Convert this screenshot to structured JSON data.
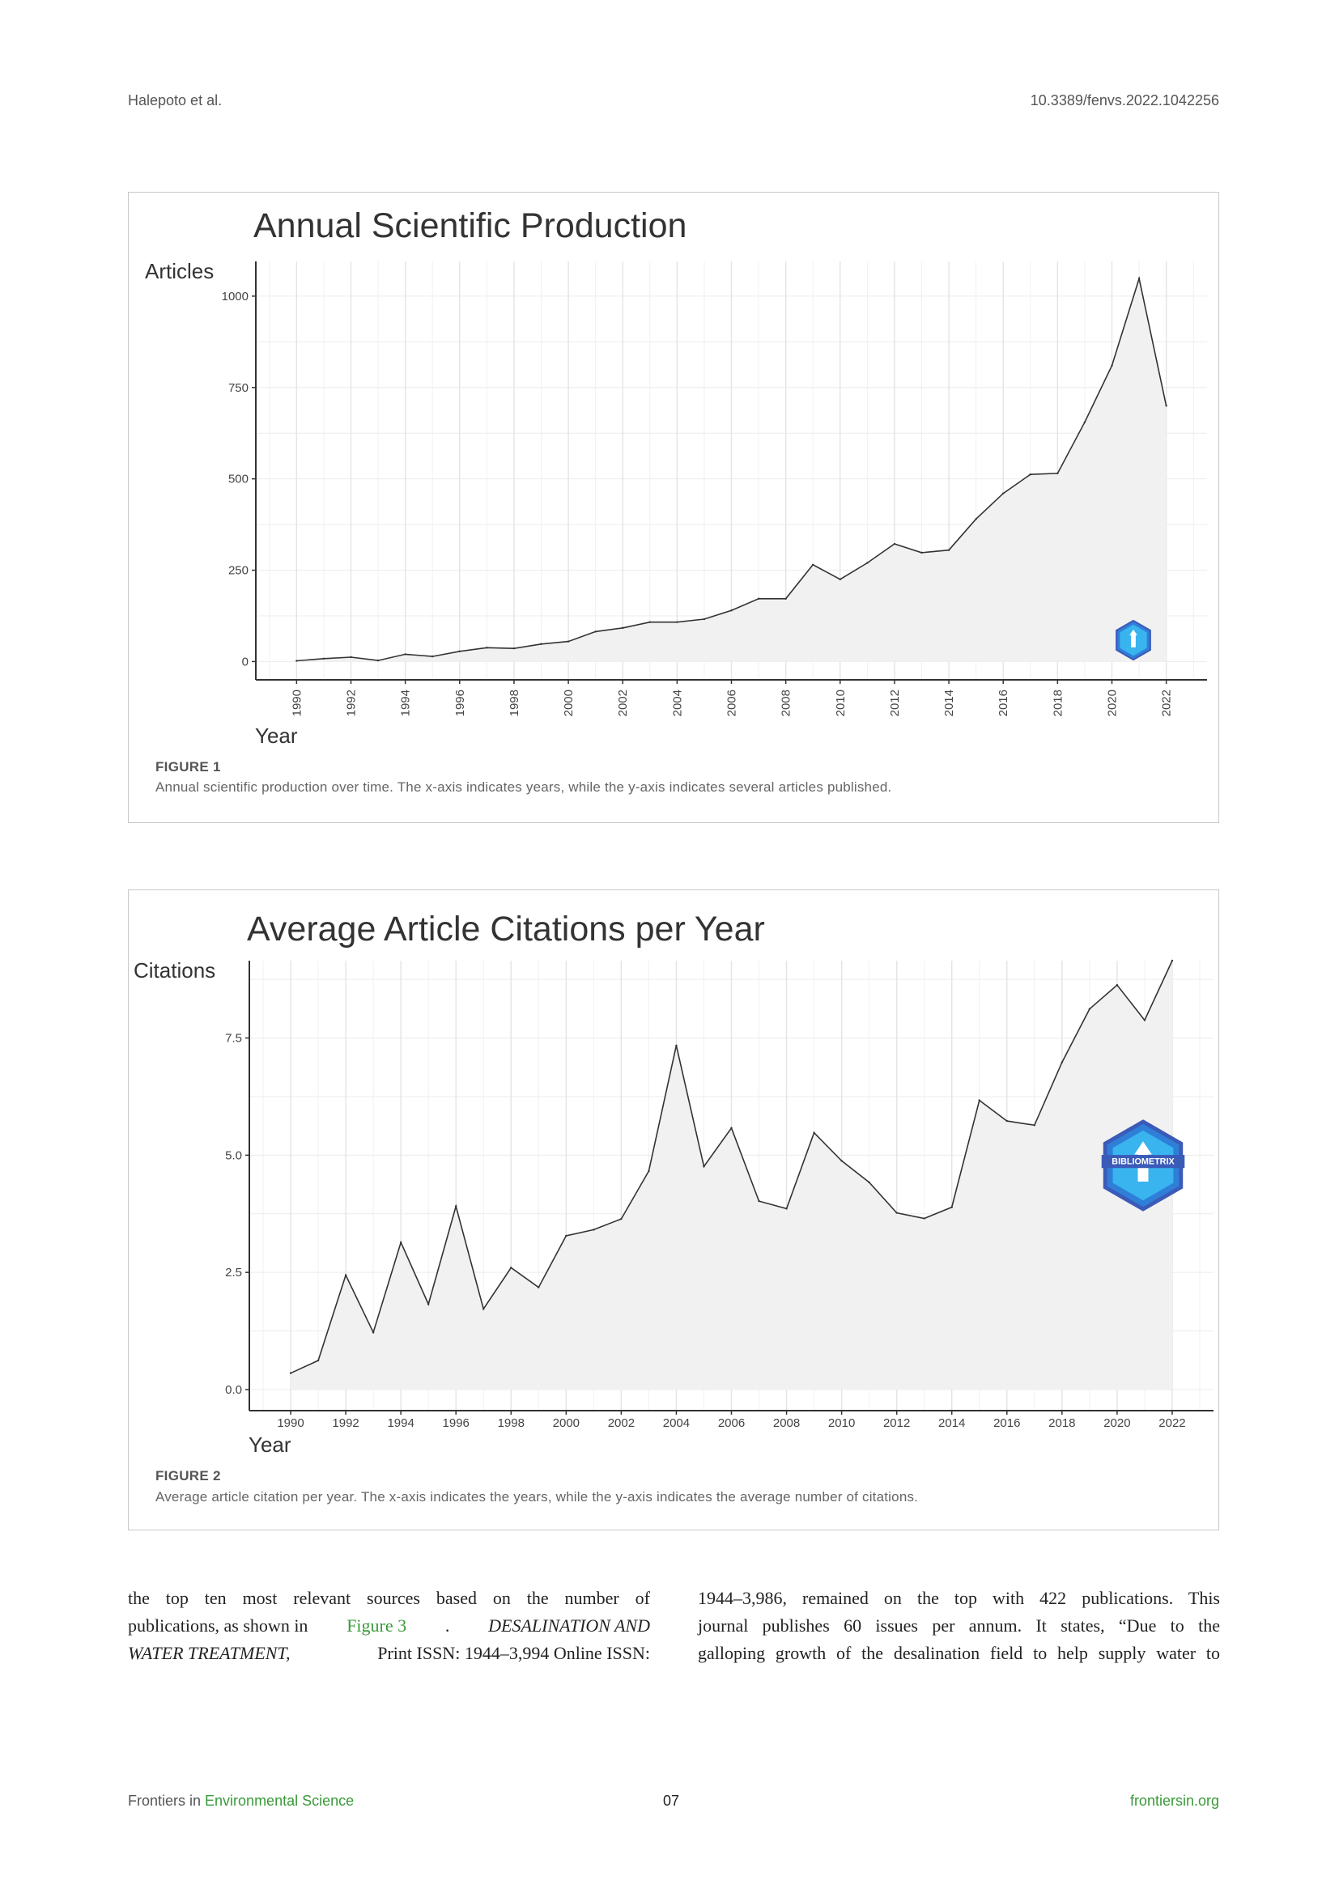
{
  "header": {
    "authors": "Halepoto et al.",
    "doi": "10.3389/fenvs.2022.1042256"
  },
  "figures": [
    {
      "label": "FIGURE 1",
      "caption": "Annual scientific production over time. The x-axis indicates years, while the y-axis indicates several articles published."
    },
    {
      "label": "FIGURE 2",
      "caption": "Average article citation per year. The x-axis indicates the years, while the y-axis indicates the average number of citations."
    }
  ],
  "chart_data": [
    {
      "type": "area",
      "title": "Annual Scientific Production",
      "xlabel": "Year",
      "ylabel": "Articles",
      "x": [
        1990,
        1991,
        1992,
        1993,
        1994,
        1995,
        1996,
        1997,
        1998,
        1999,
        2000,
        2001,
        2002,
        2003,
        2004,
        2005,
        2006,
        2007,
        2008,
        2009,
        2010,
        2011,
        2012,
        2013,
        2014,
        2015,
        2016,
        2017,
        2018,
        2019,
        2020,
        2021,
        2022
      ],
      "series": [
        {
          "values": [
            2,
            8,
            12,
            3,
            20,
            14,
            28,
            38,
            36,
            48,
            55,
            82,
            92,
            108,
            108,
            116,
            140,
            172,
            172,
            265,
            225,
            270,
            322,
            298,
            305,
            390,
            460,
            512,
            515,
            655,
            810,
            1048,
            700
          ]
        }
      ],
      "xticks": [
        "1990",
        "1992",
        "1994",
        "1996",
        "1998",
        "2000",
        "2002",
        "2004",
        "2006",
        "2008",
        "2010",
        "2012",
        "2014",
        "2016",
        "2018",
        "2020",
        "2022"
      ],
      "yticks": [
        "0",
        "250",
        "500",
        "750",
        "1000"
      ],
      "xlim": [
        1988.5,
        2023.5
      ],
      "ylim": [
        -50,
        1095
      ],
      "grid": true,
      "xtick_rotation": "vertical",
      "logo": "bibliometrix-logo"
    },
    {
      "type": "area",
      "title": "Average Article Citations per Year",
      "xlabel": "Year",
      "ylabel": "Citations",
      "x": [
        1990,
        1991,
        1992,
        1993,
        1994,
        1995,
        1996,
        1997,
        1998,
        1999,
        2000,
        2001,
        2002,
        2003,
        2004,
        2005,
        2006,
        2007,
        2008,
        2009,
        2010,
        2011,
        2012,
        2013,
        2014,
        2015,
        2016,
        2017,
        2018,
        2019,
        2020,
        2021,
        2022
      ],
      "series": [
        {
          "values": [
            0.35,
            0.62,
            2.44,
            1.22,
            3.14,
            1.82,
            3.91,
            1.72,
            2.6,
            2.18,
            3.28,
            3.41,
            3.64,
            4.66,
            7.34,
            4.76,
            5.58,
            4.02,
            3.86,
            5.48,
            4.88,
            4.42,
            3.77,
            3.65,
            3.89,
            6.17,
            5.73,
            5.64,
            6.98,
            8.12,
            8.63,
            7.88,
            9.15
          ]
        }
      ],
      "xticks": [
        "1990",
        "1992",
        "1994",
        "1996",
        "1998",
        "2000",
        "2002",
        "2004",
        "2006",
        "2008",
        "2010",
        "2012",
        "2014",
        "2016",
        "2018",
        "2020",
        "2022"
      ],
      "yticks": [
        "0.0",
        "2.5",
        "5.0",
        "7.5"
      ],
      "xlim": [
        1988.5,
        2023.5
      ],
      "ylim": [
        -0.45,
        9.15
      ],
      "grid": true,
      "logo": "bibliometrix-logo",
      "logo_text": "BIBLIOMETRIX"
    }
  ],
  "body": {
    "left_lines": [
      "the top ten most relevant sources based on the number of",
      [
        "publications, as shown in ",
        "Figure 3",
        ". ",
        "DESALINATION AND"
      ],
      [
        "WATER TREATMENT,",
        " Print ISSN: 1944–3,994 Online ISSN:"
      ]
    ],
    "right_lines": [
      "1944–3,986, remained on the top with 422 publications. This",
      "journal publishes 60 issues per annum. It states, “Due to the",
      "galloping growth of the desalination field to help supply water to"
    ]
  },
  "footer": {
    "journal_prefix": "Frontiers in ",
    "journal_name": "Environmental Science",
    "page": "07",
    "site": "frontiersin.org"
  }
}
